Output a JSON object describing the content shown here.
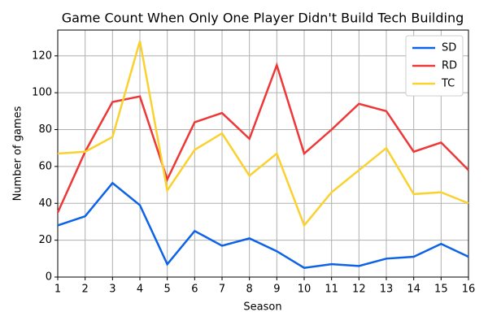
{
  "chart_data": {
    "type": "line",
    "title": "Game Count When Only One Player Didn't Build Tech Building",
    "x_label": "Season",
    "y_label": "Number of games",
    "x": [
      1,
      2,
      3,
      4,
      5,
      6,
      7,
      8,
      9,
      10,
      11,
      12,
      13,
      14,
      15,
      16
    ],
    "series": [
      {
        "name": "SD",
        "color": "#0c63e7",
        "values": [
          28,
          33,
          51,
          39,
          7,
          25,
          17,
          21,
          14,
          5,
          7,
          6,
          10,
          11,
          18,
          11
        ]
      },
      {
        "name": "RD",
        "color": "#ee3737",
        "values": [
          35,
          68,
          95,
          98,
          53,
          84,
          89,
          75,
          115,
          67,
          80,
          94,
          90,
          68,
          73,
          58
        ]
      },
      {
        "name": "TC",
        "color": "#fad12f",
        "values": [
          67,
          68,
          76,
          128,
          47,
          69,
          78,
          55,
          67,
          28,
          46,
          58,
          70,
          45,
          46,
          40
        ]
      }
    ],
    "xlim": [
      1,
      16
    ],
    "xticks": [
      1,
      2,
      3,
      4,
      5,
      6,
      7,
      8,
      9,
      10,
      11,
      12,
      13,
      14,
      15,
      16
    ],
    "ylim": [
      0,
      134
    ],
    "yticks": [
      0,
      20,
      40,
      60,
      80,
      100,
      120
    ],
    "grid": true,
    "legend_position": "upper-right"
  }
}
